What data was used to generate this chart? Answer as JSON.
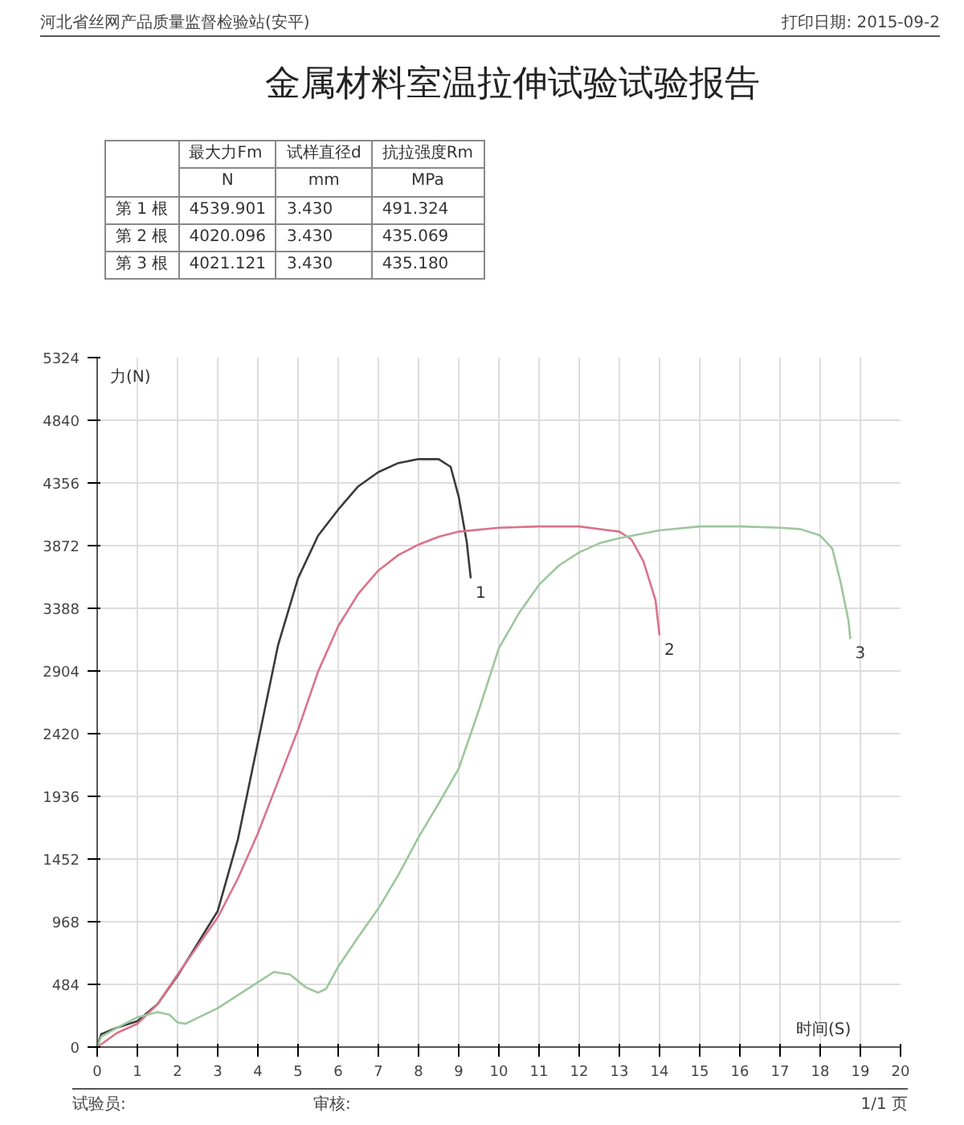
{
  "chart_data": {
    "type": "line",
    "title": "金属材料室温拉伸试验试验报告",
    "xlabel": "时间(S)",
    "ylabel": "力(N)",
    "xlim": [
      0,
      20
    ],
    "ylim": [
      0,
      5324
    ],
    "xticks": [
      0,
      1,
      2,
      3,
      4,
      5,
      6,
      7,
      8,
      9,
      10,
      11,
      12,
      13,
      14,
      15,
      16,
      17,
      18,
      19,
      20
    ],
    "yticks": [
      0,
      484,
      968,
      1452,
      1936,
      2420,
      2904,
      3388,
      3872,
      4356,
      4840,
      5324
    ],
    "grid": true,
    "series": [
      {
        "name": "1",
        "color": "#3a3a3a",
        "x": [
          0,
          0.1,
          0.5,
          1,
          1.5,
          2,
          2.5,
          3,
          3.5,
          4,
          4.5,
          5,
          5.5,
          6,
          6.5,
          7,
          7.5,
          8,
          8.5,
          8.8,
          9,
          9.2,
          9.3
        ],
        "values": [
          0,
          100,
          150,
          200,
          330,
          550,
          800,
          1050,
          1600,
          2350,
          3100,
          3620,
          3950,
          4150,
          4330,
          4440,
          4510,
          4540,
          4540,
          4480,
          4250,
          3900,
          3620
        ]
      },
      {
        "name": "2",
        "color": "#d9738a",
        "x": [
          0,
          0.5,
          1,
          1.5,
          2,
          2.5,
          3,
          3.5,
          4,
          4.5,
          5,
          5.5,
          6,
          6.5,
          7,
          7.5,
          8,
          8.5,
          9,
          10,
          11,
          12,
          13,
          13.3,
          13.6,
          13.9,
          14
        ],
        "values": [
          0,
          110,
          180,
          330,
          560,
          780,
          1000,
          1300,
          1650,
          2050,
          2450,
          2900,
          3250,
          3500,
          3680,
          3800,
          3880,
          3940,
          3980,
          4010,
          4020,
          4020,
          3980,
          3920,
          3750,
          3450,
          3180
        ]
      },
      {
        "name": "3",
        "color": "#9cc79c",
        "x": [
          0,
          0.1,
          0.5,
          1,
          1.5,
          1.8,
          2,
          2.2,
          3,
          4,
          4.4,
          4.8,
          5.2,
          5.5,
          5.7,
          6,
          6.5,
          7,
          7.5,
          8,
          8.5,
          9,
          9.5,
          10,
          10.5,
          11,
          11.5,
          12,
          12.5,
          13,
          14,
          15,
          16,
          17,
          17.5,
          18,
          18.3,
          18.5,
          18.7,
          18.75
        ],
        "values": [
          0,
          80,
          150,
          230,
          270,
          250,
          190,
          180,
          300,
          500,
          580,
          560,
          460,
          420,
          450,
          620,
          850,
          1070,
          1330,
          1620,
          1880,
          2150,
          2600,
          3080,
          3350,
          3570,
          3720,
          3820,
          3890,
          3930,
          3990,
          4020,
          4020,
          4010,
          4000,
          3950,
          3850,
          3600,
          3300,
          3150
        ]
      }
    ],
    "annotations": [
      "河北省丝网产品质量监督检验站(安平)",
      "打印日期: 2015-09-2",
      "最大力Fm",
      "试样直径d",
      "抗拉强度Rm",
      "N",
      "mm",
      "MPa",
      "第 1 根",
      "4539.901",
      "3.430",
      "491.324",
      "第 2 根",
      "4020.096",
      "3.430",
      "435.069",
      "第 3 根",
      "4021.121",
      "3.430",
      "435.180",
      "试验员:",
      "审核:",
      "1/1 页"
    ]
  }
}
